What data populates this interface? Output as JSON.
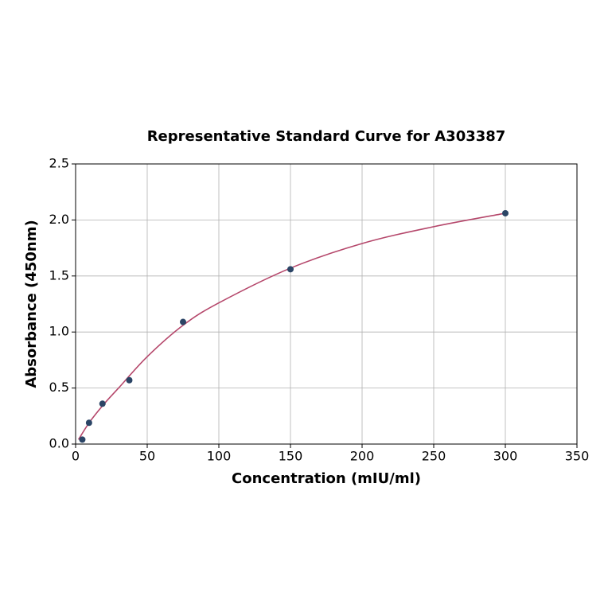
{
  "chart_data": {
    "type": "scatter",
    "title": "Representative Standard Curve for A303387",
    "x_label": "Concentration (mIU/ml)",
    "y_label": "Absorbance (450nm)",
    "xlim": [
      0,
      350
    ],
    "ylim": [
      0,
      2.5
    ],
    "xticks": [
      0,
      50,
      100,
      150,
      200,
      250,
      300,
      350
    ],
    "yticks": [
      {
        "value": 0,
        "label": "0.0"
      },
      0.5,
      {
        "value": 1,
        "label": "1.0"
      },
      1.5,
      {
        "value": 2,
        "label": "2.0"
      },
      2.5
    ],
    "grid": true,
    "series": [
      {
        "type": "line",
        "color": "#b5476b",
        "x": [
          2,
          10,
          20,
          30,
          50,
          75,
          100,
          150,
          200,
          250,
          300
        ],
        "values": [
          0.04,
          0.2,
          0.36,
          0.5,
          0.78,
          1.06,
          1.26,
          1.57,
          1.79,
          1.94,
          2.06
        ]
      },
      {
        "type": "scatter",
        "color": "#2b4566",
        "x": [
          4.6875,
          9.375,
          18.75,
          37.5,
          75,
          150,
          300
        ],
        "values": [
          0.04,
          0.19,
          0.36,
          0.57,
          1.09,
          1.56,
          2.06
        ]
      }
    ]
  }
}
